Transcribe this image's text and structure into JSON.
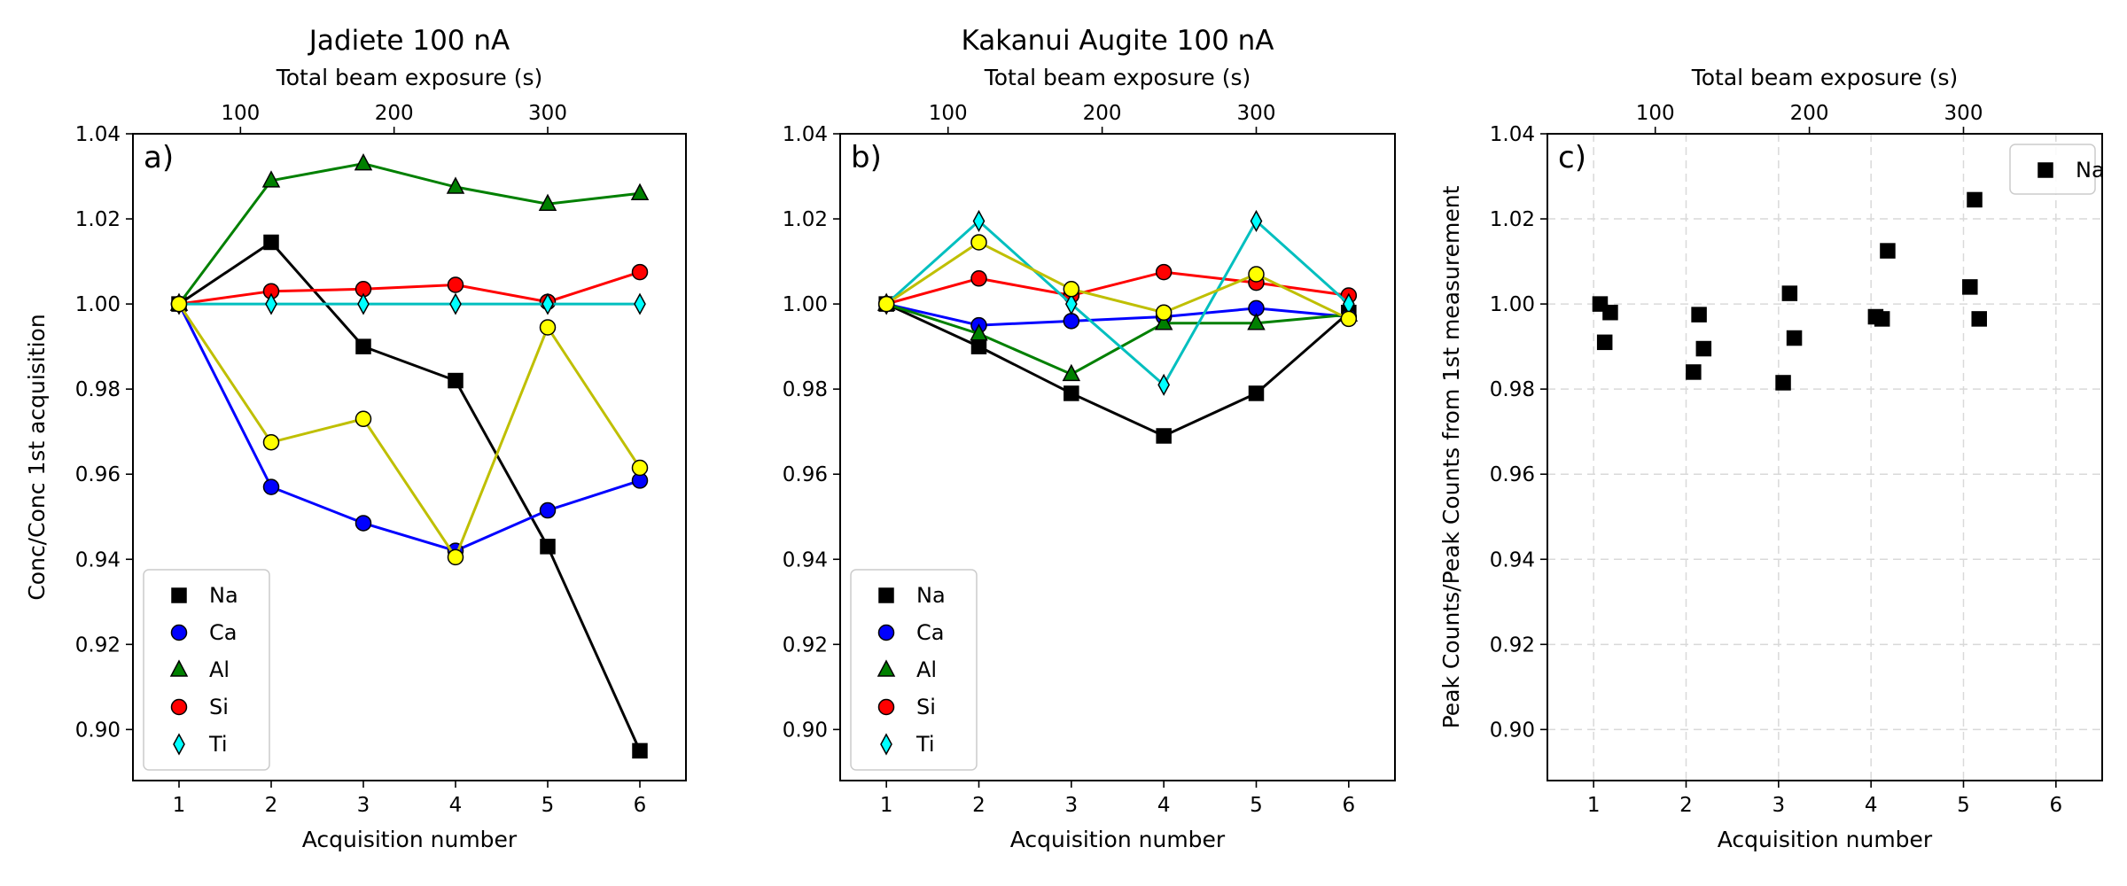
{
  "chart_data": [
    {
      "type": "line",
      "panel_label": "a)",
      "title": "Jadiete 100 nA",
      "xlabel": "Acquisition number",
      "ylabel": "Conc/Conc 1st acquisition",
      "x2label": "Total beam exposure (s)",
      "x": [
        1,
        2,
        3,
        4,
        5,
        6
      ],
      "xlim": [
        0.5,
        6.5
      ],
      "ylim": [
        0.888,
        1.04
      ],
      "xticks": [
        1,
        2,
        3,
        4,
        5,
        6
      ],
      "yticks": [
        "0.90",
        "0.92",
        "0.94",
        "0.96",
        "0.98",
        "1.00",
        "1.02",
        "1.04"
      ],
      "x2ticks": [
        100,
        200,
        300
      ],
      "x2_seconds_per_acquisition": 60,
      "grid": false,
      "legend": "lower-left",
      "series": [
        {
          "name": "Na",
          "values": [
            1.0,
            1.0145,
            0.99,
            0.982,
            0.943,
            0.895
          ],
          "line_color": "#000000",
          "marker": "square",
          "marker_color": "#000000"
        },
        {
          "name": "Ca",
          "values": [
            1.0,
            0.957,
            0.9485,
            0.942,
            0.9515,
            0.9585
          ],
          "line_color": "#0000ff",
          "marker": "circle",
          "marker_color": "#0000ff"
        },
        {
          "name": "Al",
          "values": [
            1.0,
            1.029,
            1.033,
            1.0275,
            1.0235,
            1.026
          ],
          "line_color": "#008000",
          "marker": "triangle",
          "marker_color": "#008000"
        },
        {
          "name": "Si",
          "values": [
            1.0,
            1.003,
            1.0035,
            1.0045,
            1.0005,
            1.0075
          ],
          "line_color": "#ff0000",
          "marker": "circle",
          "marker_color": "#ff0000"
        },
        {
          "name": "Ti",
          "values": [
            1.0,
            1.0,
            1.0,
            1.0,
            1.0,
            1.0
          ],
          "line_color": "#00bfbf",
          "marker": "diamond",
          "marker_color": "#00ffff"
        },
        {
          "values": [
            1.0,
            0.9675,
            0.973,
            0.9405,
            0.9945,
            0.9615
          ],
          "line_color": "#bfbf00",
          "marker": "circle",
          "marker_color": "#ffff00",
          "in_legend": false
        }
      ]
    },
    {
      "type": "line",
      "panel_label": "b)",
      "title": "Kakanui Augite 100 nA",
      "xlabel": "Acquisition number",
      "ylabel": "",
      "x2label": "Total beam exposure (s)",
      "x": [
        1,
        2,
        3,
        4,
        5,
        6
      ],
      "xlim": [
        0.5,
        6.5
      ],
      "ylim": [
        0.888,
        1.04
      ],
      "xticks": [
        1,
        2,
        3,
        4,
        5,
        6
      ],
      "yticks": [
        "0.90",
        "0.92",
        "0.94",
        "0.96",
        "0.98",
        "1.00",
        "1.02",
        "1.04"
      ],
      "x2ticks": [
        100,
        200,
        300
      ],
      "x2_seconds_per_acquisition": 60,
      "grid": false,
      "legend": "lower-left",
      "series": [
        {
          "name": "Na",
          "values": [
            1.0,
            0.99,
            0.979,
            0.969,
            0.979,
            0.998
          ],
          "line_color": "#000000",
          "marker": "square",
          "marker_color": "#000000"
        },
        {
          "name": "Ca",
          "values": [
            1.0,
            0.995,
            0.996,
            0.997,
            0.999,
            0.997
          ],
          "line_color": "#0000ff",
          "marker": "circle",
          "marker_color": "#0000ff"
        },
        {
          "name": "Al",
          "values": [
            1.0,
            0.993,
            0.9835,
            0.9955,
            0.9955,
            0.9975
          ],
          "line_color": "#008000",
          "marker": "triangle",
          "marker_color": "#008000"
        },
        {
          "name": "Si",
          "values": [
            1.0,
            1.006,
            1.002,
            1.0075,
            1.005,
            1.002
          ],
          "line_color": "#ff0000",
          "marker": "circle",
          "marker_color": "#ff0000"
        },
        {
          "name": "Ti",
          "values": [
            1.0,
            1.0195,
            1.0,
            0.981,
            1.0195,
            1.0
          ],
          "line_color": "#00bfbf",
          "marker": "diamond",
          "marker_color": "#00ffff"
        },
        {
          "values": [
            1.0,
            1.0145,
            1.0035,
            0.998,
            1.007,
            0.9965
          ],
          "line_color": "#bfbf00",
          "marker": "circle",
          "marker_color": "#ffff00",
          "in_legend": false
        }
      ]
    },
    {
      "type": "scatter",
      "panel_label": "c)",
      "title": "",
      "xlabel": "Acquisition number",
      "ylabel": "Peak Counts/Peak Counts from 1st measurement",
      "x2label": "Total beam exposure (s)",
      "xlim": [
        0.5,
        6.5
      ],
      "ylim": [
        0.888,
        1.04
      ],
      "xticks": [
        1,
        2,
        3,
        4,
        5,
        6
      ],
      "yticks": [
        "0.90",
        "0.92",
        "0.94",
        "0.96",
        "0.98",
        "1.00",
        "1.02",
        "1.04"
      ],
      "x2ticks": [
        100,
        200,
        300
      ],
      "x2_seconds_per_acquisition": 60,
      "grid": true,
      "legend": "top-right",
      "series": [
        {
          "name": "Na",
          "marker": "square",
          "marker_color": "#000000",
          "points": [
            [
              1.07,
              1.0
            ],
            [
              1.12,
              0.991
            ],
            [
              1.18,
              0.998
            ],
            [
              2.08,
              0.984
            ],
            [
              2.14,
              0.9975
            ],
            [
              2.19,
              0.9895
            ],
            [
              3.05,
              0.9815
            ],
            [
              3.12,
              1.0025
            ],
            [
              3.17,
              0.992
            ],
            [
              4.05,
              0.997
            ],
            [
              4.12,
              0.9965
            ],
            [
              4.18,
              1.0125
            ],
            [
              5.07,
              1.004
            ],
            [
              5.12,
              1.0245
            ],
            [
              5.17,
              0.9965
            ]
          ]
        }
      ]
    }
  ]
}
